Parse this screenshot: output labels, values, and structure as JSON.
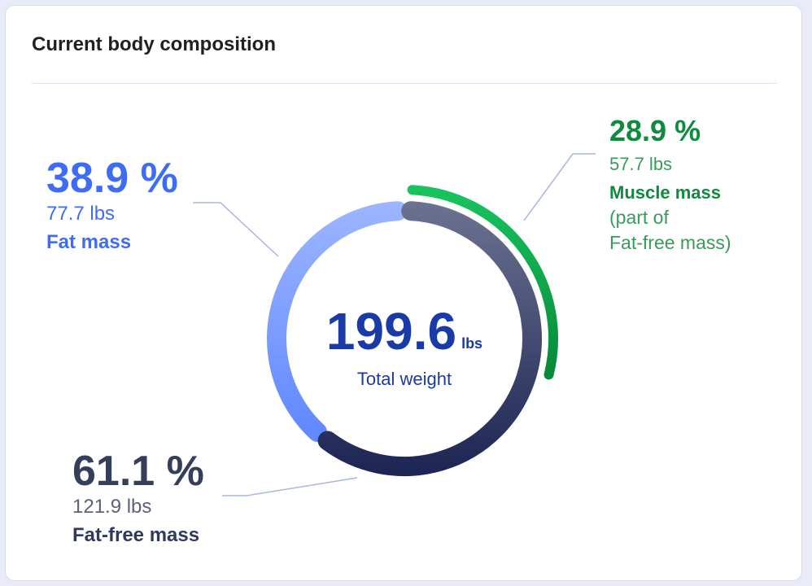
{
  "card": {
    "title": "Current body composition"
  },
  "colors": {
    "fat": "#3e6cf5",
    "fat_arc_top": "#9db6ff",
    "fat_arc_bottom": "#6289ff",
    "fatfree_dark": "#2f3a5c",
    "fatfree_pct": "#353e5a",
    "fatfree_lbs": "#5b6378",
    "fatfree_arc_top": "#6c7391",
    "fatfree_arc_bottom": "#1c2553",
    "muscle": "#0f8a3e",
    "muscle_light": "#3a9a5c",
    "muscle_arc_top": "#18c55f",
    "muscle_arc_bottom": "#078a3a",
    "total": "#1a3aa6",
    "leader": "#a9b6e0",
    "title": "#1f1f24"
  },
  "center": {
    "value": "199.6",
    "unit": "lbs",
    "label": "Total weight"
  },
  "labels": {
    "fat": {
      "percent": "38.9 %",
      "weight": "77.7 lbs",
      "name": "Fat mass"
    },
    "fatfree": {
      "percent": "61.1 %",
      "weight": "121.9 lbs",
      "name": "Fat-free mass"
    },
    "muscle": {
      "percent": "28.9 %",
      "weight": "57.7 lbs",
      "name": "Muscle mass",
      "note_line1": "(part of",
      "note_line2": "Fat-free mass)"
    }
  },
  "chart_data": {
    "type": "pie",
    "title": "Current body composition",
    "total": {
      "value": 199.6,
      "unit": "lbs",
      "label": "Total weight"
    },
    "slices": [
      {
        "name": "Fat mass",
        "percent": 38.9,
        "value": 77.7,
        "unit": "lbs"
      },
      {
        "name": "Fat-free mass",
        "percent": 61.1,
        "value": 121.9,
        "unit": "lbs"
      }
    ],
    "sub_series": [
      {
        "name": "Muscle mass",
        "percent": 28.9,
        "value": 57.7,
        "unit": "lbs",
        "part_of": "Fat-free mass"
      }
    ],
    "legend": "none"
  }
}
